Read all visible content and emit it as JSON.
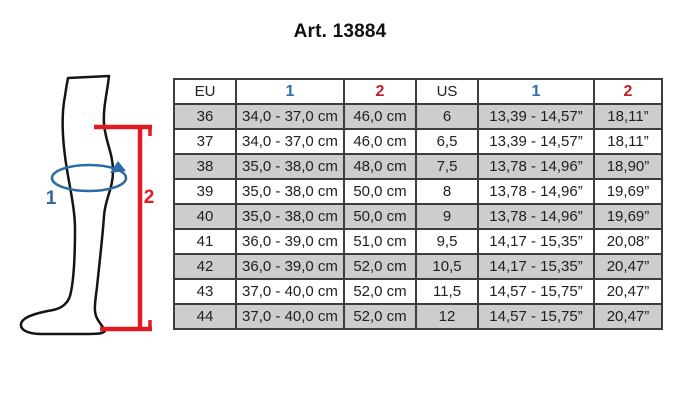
{
  "title": "Art. 13884",
  "illustration": {
    "circumference_label": "1",
    "height_label": "2"
  },
  "colors": {
    "header_blue": "#2e6fad",
    "header_red": "#c2212d",
    "diagram_blue": "#2d6ba3",
    "diagram_red": "#e11b22",
    "row_stripe_gray": "#cdcdcd",
    "grid_line": "#3d3d3d"
  },
  "table": {
    "column_keys": [
      "eu",
      "calf-cm",
      "height-cm",
      "us",
      "calf-in",
      "height-in"
    ],
    "headers": [
      {
        "label": "EU",
        "accent": "none"
      },
      {
        "label": "1",
        "accent": "blue"
      },
      {
        "label": "2",
        "accent": "red"
      },
      {
        "label": "US",
        "accent": "none"
      },
      {
        "label": "1",
        "accent": "blue"
      },
      {
        "label": "2",
        "accent": "red"
      }
    ],
    "rows": [
      [
        "36",
        "34,0 - 37,0 cm",
        "46,0 cm",
        "6",
        "13,39 - 14,57”",
        "18,11”"
      ],
      [
        "37",
        "34,0 - 37,0 cm",
        "46,0 cm",
        "6,5",
        "13,39 - 14,57”",
        "18,11”"
      ],
      [
        "38",
        "35,0 - 38,0 cm",
        "48,0 cm",
        "7,5",
        "13,78 - 14,96”",
        "18,90”"
      ],
      [
        "39",
        "35,0 - 38,0 cm",
        "50,0 cm",
        "8",
        "13,78 - 14,96”",
        "19,69”"
      ],
      [
        "40",
        "35,0 - 38,0 cm",
        "50,0 cm",
        "9",
        "13,78 - 14,96”",
        "19,69”"
      ],
      [
        "41",
        "36,0 - 39,0 cm",
        "51,0 cm",
        "9,5",
        "14,17 - 15,35”",
        "20,08”"
      ],
      [
        "42",
        "36,0 - 39,0 cm",
        "52,0 cm",
        "10,5",
        "14,17 - 15,35”",
        "20,47”"
      ],
      [
        "43",
        "37,0 - 40,0 cm",
        "52,0 cm",
        "11,5",
        "14,57 - 15,75”",
        "20,47”"
      ],
      [
        "44",
        "37,0 - 40,0 cm",
        "52,0 cm",
        "12",
        "14,57 - 15,75”",
        "20,47”"
      ]
    ]
  }
}
